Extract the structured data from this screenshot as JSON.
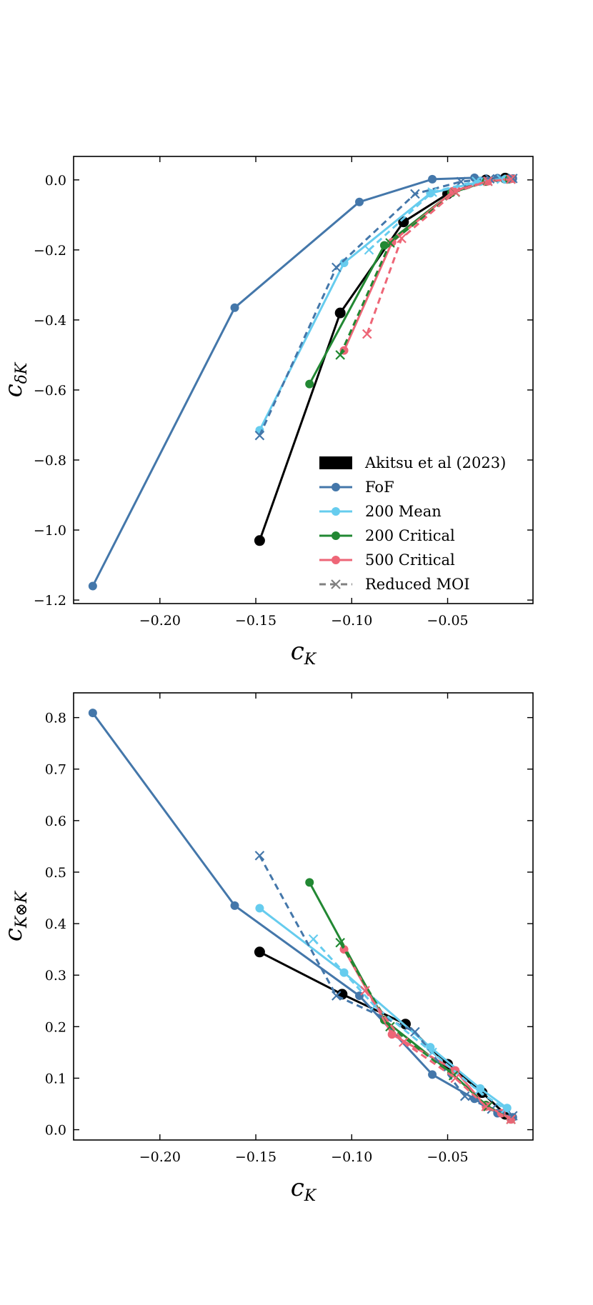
{
  "chart_data": [
    {
      "type": "line",
      "xlabel": "c",
      "xlabel_sub": "K",
      "ylabel": "c",
      "ylabel_sub": "δK",
      "xlim": [
        -0.245,
        -0.0055
      ],
      "ylim": [
        -1.21,
        0.067
      ],
      "xticks": [
        -0.2,
        -0.15,
        -0.1,
        -0.05
      ],
      "xtick_labels": [
        "−0.20",
        "−0.15",
        "−0.10",
        "−0.05"
      ],
      "yticks": [
        0.0,
        -0.2,
        -0.4,
        -0.6,
        -0.8,
        -1.0,
        -1.2
      ],
      "ytick_labels": [
        "0.0",
        "−0.2",
        "−0.4",
        "−0.6",
        "−0.8",
        "−1.0",
        "−1.2"
      ],
      "legend_position": "lower-right",
      "legend": [
        {
          "label": "Akitsu et al (2023)",
          "style": "patch",
          "color": "#000000"
        },
        {
          "label": "FoF",
          "style": "line-marker",
          "color": "#4477aa"
        },
        {
          "label": "200 Mean",
          "style": "line-marker",
          "color": "#66ccee"
        },
        {
          "label": "200 Critical",
          "style": "line-marker",
          "color": "#228833"
        },
        {
          "label": "500 Critical",
          "style": "line-marker",
          "color": "#ee6677"
        },
        {
          "label": "Reduced MOI",
          "style": "dashed-cross",
          "color": "#808080"
        }
      ],
      "series": [
        {
          "name": "Akitsu et al (2023)",
          "color": "#000000",
          "dashed": false,
          "marker": "circle-large",
          "x": [
            -0.148,
            -0.106,
            -0.073,
            -0.05,
            -0.03,
            -0.02
          ],
          "y": [
            -1.03,
            -0.38,
            -0.12,
            -0.04,
            0.0,
            0.005
          ]
        },
        {
          "name": "FoF",
          "color": "#4477aa",
          "dashed": false,
          "marker": "circle",
          "x": [
            -0.235,
            -0.161,
            -0.096,
            -0.058,
            -0.036,
            -0.024,
            -0.016
          ],
          "y": [
            -1.16,
            -0.365,
            -0.063,
            0.002,
            0.006,
            0.005,
            0.004
          ]
        },
        {
          "name": "200 Mean",
          "color": "#66ccee",
          "dashed": false,
          "marker": "circle",
          "x": [
            -0.148,
            -0.104,
            -0.059,
            -0.033,
            -0.02
          ],
          "y": [
            -0.715,
            -0.237,
            -0.038,
            -0.005,
            0.002
          ]
        },
        {
          "name": "200 Critical",
          "color": "#228833",
          "dashed": false,
          "marker": "circle",
          "x": [
            -0.122,
            -0.083,
            -0.048,
            -0.03,
            -0.018
          ],
          "y": [
            -0.583,
            -0.187,
            -0.037,
            -0.005,
            0.002
          ]
        },
        {
          "name": "500 Critical",
          "color": "#ee6677",
          "dashed": false,
          "marker": "circle",
          "x": [
            -0.104,
            -0.079,
            -0.047,
            -0.029,
            -0.017
          ],
          "y": [
            -0.487,
            -0.178,
            -0.032,
            -0.004,
            0.003
          ]
        },
        {
          "color": "#4477aa",
          "dashed": true,
          "marker": "x",
          "x": [
            -0.148,
            -0.108,
            -0.067,
            -0.043,
            -0.028,
            -0.016
          ],
          "y": [
            -0.73,
            -0.25,
            -0.04,
            -0.005,
            0.003,
            0.004
          ]
        },
        {
          "color": "#66ccee",
          "dashed": true,
          "marker": "x",
          "x": [
            -0.091,
            -0.058,
            -0.035,
            -0.022
          ],
          "y": [
            -0.2,
            -0.035,
            -0.004,
            0.002
          ]
        },
        {
          "color": "#228833",
          "dashed": true,
          "marker": "x",
          "x": [
            -0.106,
            -0.08,
            -0.046,
            -0.029,
            -0.017
          ],
          "y": [
            -0.5,
            -0.18,
            -0.035,
            -0.004,
            0.002
          ]
        },
        {
          "color": "#ee6677",
          "dashed": true,
          "marker": "x",
          "x": [
            -0.092,
            -0.074,
            -0.046,
            -0.029,
            -0.017
          ],
          "y": [
            -0.44,
            -0.167,
            -0.034,
            -0.004,
            0.002
          ]
        }
      ]
    },
    {
      "type": "line",
      "xlabel": "c",
      "xlabel_sub": "K",
      "ylabel": "c",
      "ylabel_sub": "K⊗K",
      "xlim": [
        -0.245,
        -0.0055
      ],
      "ylim": [
        -0.02,
        0.848
      ],
      "xticks": [
        -0.2,
        -0.15,
        -0.1,
        -0.05
      ],
      "xtick_labels": [
        "−0.20",
        "−0.15",
        "−0.10",
        "−0.05"
      ],
      "yticks": [
        0.0,
        0.1,
        0.2,
        0.3,
        0.4,
        0.5,
        0.6,
        0.7,
        0.8
      ],
      "ytick_labels": [
        "0.0",
        "0.1",
        "0.2",
        "0.3",
        "0.4",
        "0.5",
        "0.6",
        "0.7",
        "0.8"
      ],
      "series": [
        {
          "name": "Akitsu et al (2023)",
          "color": "#000000",
          "dashed": false,
          "marker": "circle-large",
          "x": [
            -0.148,
            -0.105,
            -0.072,
            -0.05,
            -0.032,
            -0.02
          ],
          "y": [
            0.345,
            0.263,
            0.205,
            0.127,
            0.072,
            0.03
          ]
        },
        {
          "name": "FoF",
          "color": "#4477aa",
          "dashed": false,
          "marker": "circle",
          "x": [
            -0.235,
            -0.161,
            -0.096,
            -0.058,
            -0.036,
            -0.024,
            -0.016
          ],
          "y": [
            0.809,
            0.435,
            0.26,
            0.107,
            0.06,
            0.032,
            0.024
          ]
        },
        {
          "name": "200 Mean",
          "color": "#66ccee",
          "dashed": false,
          "marker": "circle",
          "x": [
            -0.148,
            -0.104,
            -0.059,
            -0.033,
            -0.019
          ],
          "y": [
            0.43,
            0.305,
            0.16,
            0.08,
            0.042
          ]
        },
        {
          "name": "200 Critical",
          "color": "#228833",
          "dashed": false,
          "marker": "circle",
          "x": [
            -0.122,
            -0.083,
            -0.048,
            -0.03,
            -0.017
          ],
          "y": [
            0.48,
            0.213,
            0.11,
            0.048,
            0.02
          ]
        },
        {
          "name": "500 Critical",
          "color": "#ee6677",
          "dashed": false,
          "marker": "circle",
          "x": [
            -0.104,
            -0.079,
            -0.046,
            -0.03,
            -0.022,
            -0.017
          ],
          "y": [
            0.35,
            0.185,
            0.115,
            0.045,
            0.032,
            0.02
          ]
        },
        {
          "color": "#4477aa",
          "dashed": true,
          "marker": "x",
          "x": [
            -0.148,
            -0.108,
            -0.067,
            -0.041,
            -0.027,
            -0.016
          ],
          "y": [
            0.532,
            0.26,
            0.19,
            0.065,
            0.04,
            0.027
          ]
        },
        {
          "color": "#66ccee",
          "dashed": true,
          "marker": "x",
          "x": [
            -0.12,
            -0.088,
            -0.058,
            -0.034,
            -0.02
          ],
          "y": [
            0.37,
            0.24,
            0.15,
            0.075,
            0.04
          ]
        },
        {
          "color": "#228833",
          "dashed": true,
          "marker": "x",
          "x": [
            -0.106,
            -0.08,
            -0.047,
            -0.029,
            -0.017
          ],
          "y": [
            0.363,
            0.2,
            0.105,
            0.045,
            0.02
          ]
        },
        {
          "color": "#ee6677",
          "dashed": true,
          "marker": "x",
          "x": [
            -0.093,
            -0.073,
            -0.046,
            -0.03,
            -0.017
          ],
          "y": [
            0.27,
            0.17,
            0.1,
            0.045,
            0.02
          ]
        }
      ]
    }
  ]
}
